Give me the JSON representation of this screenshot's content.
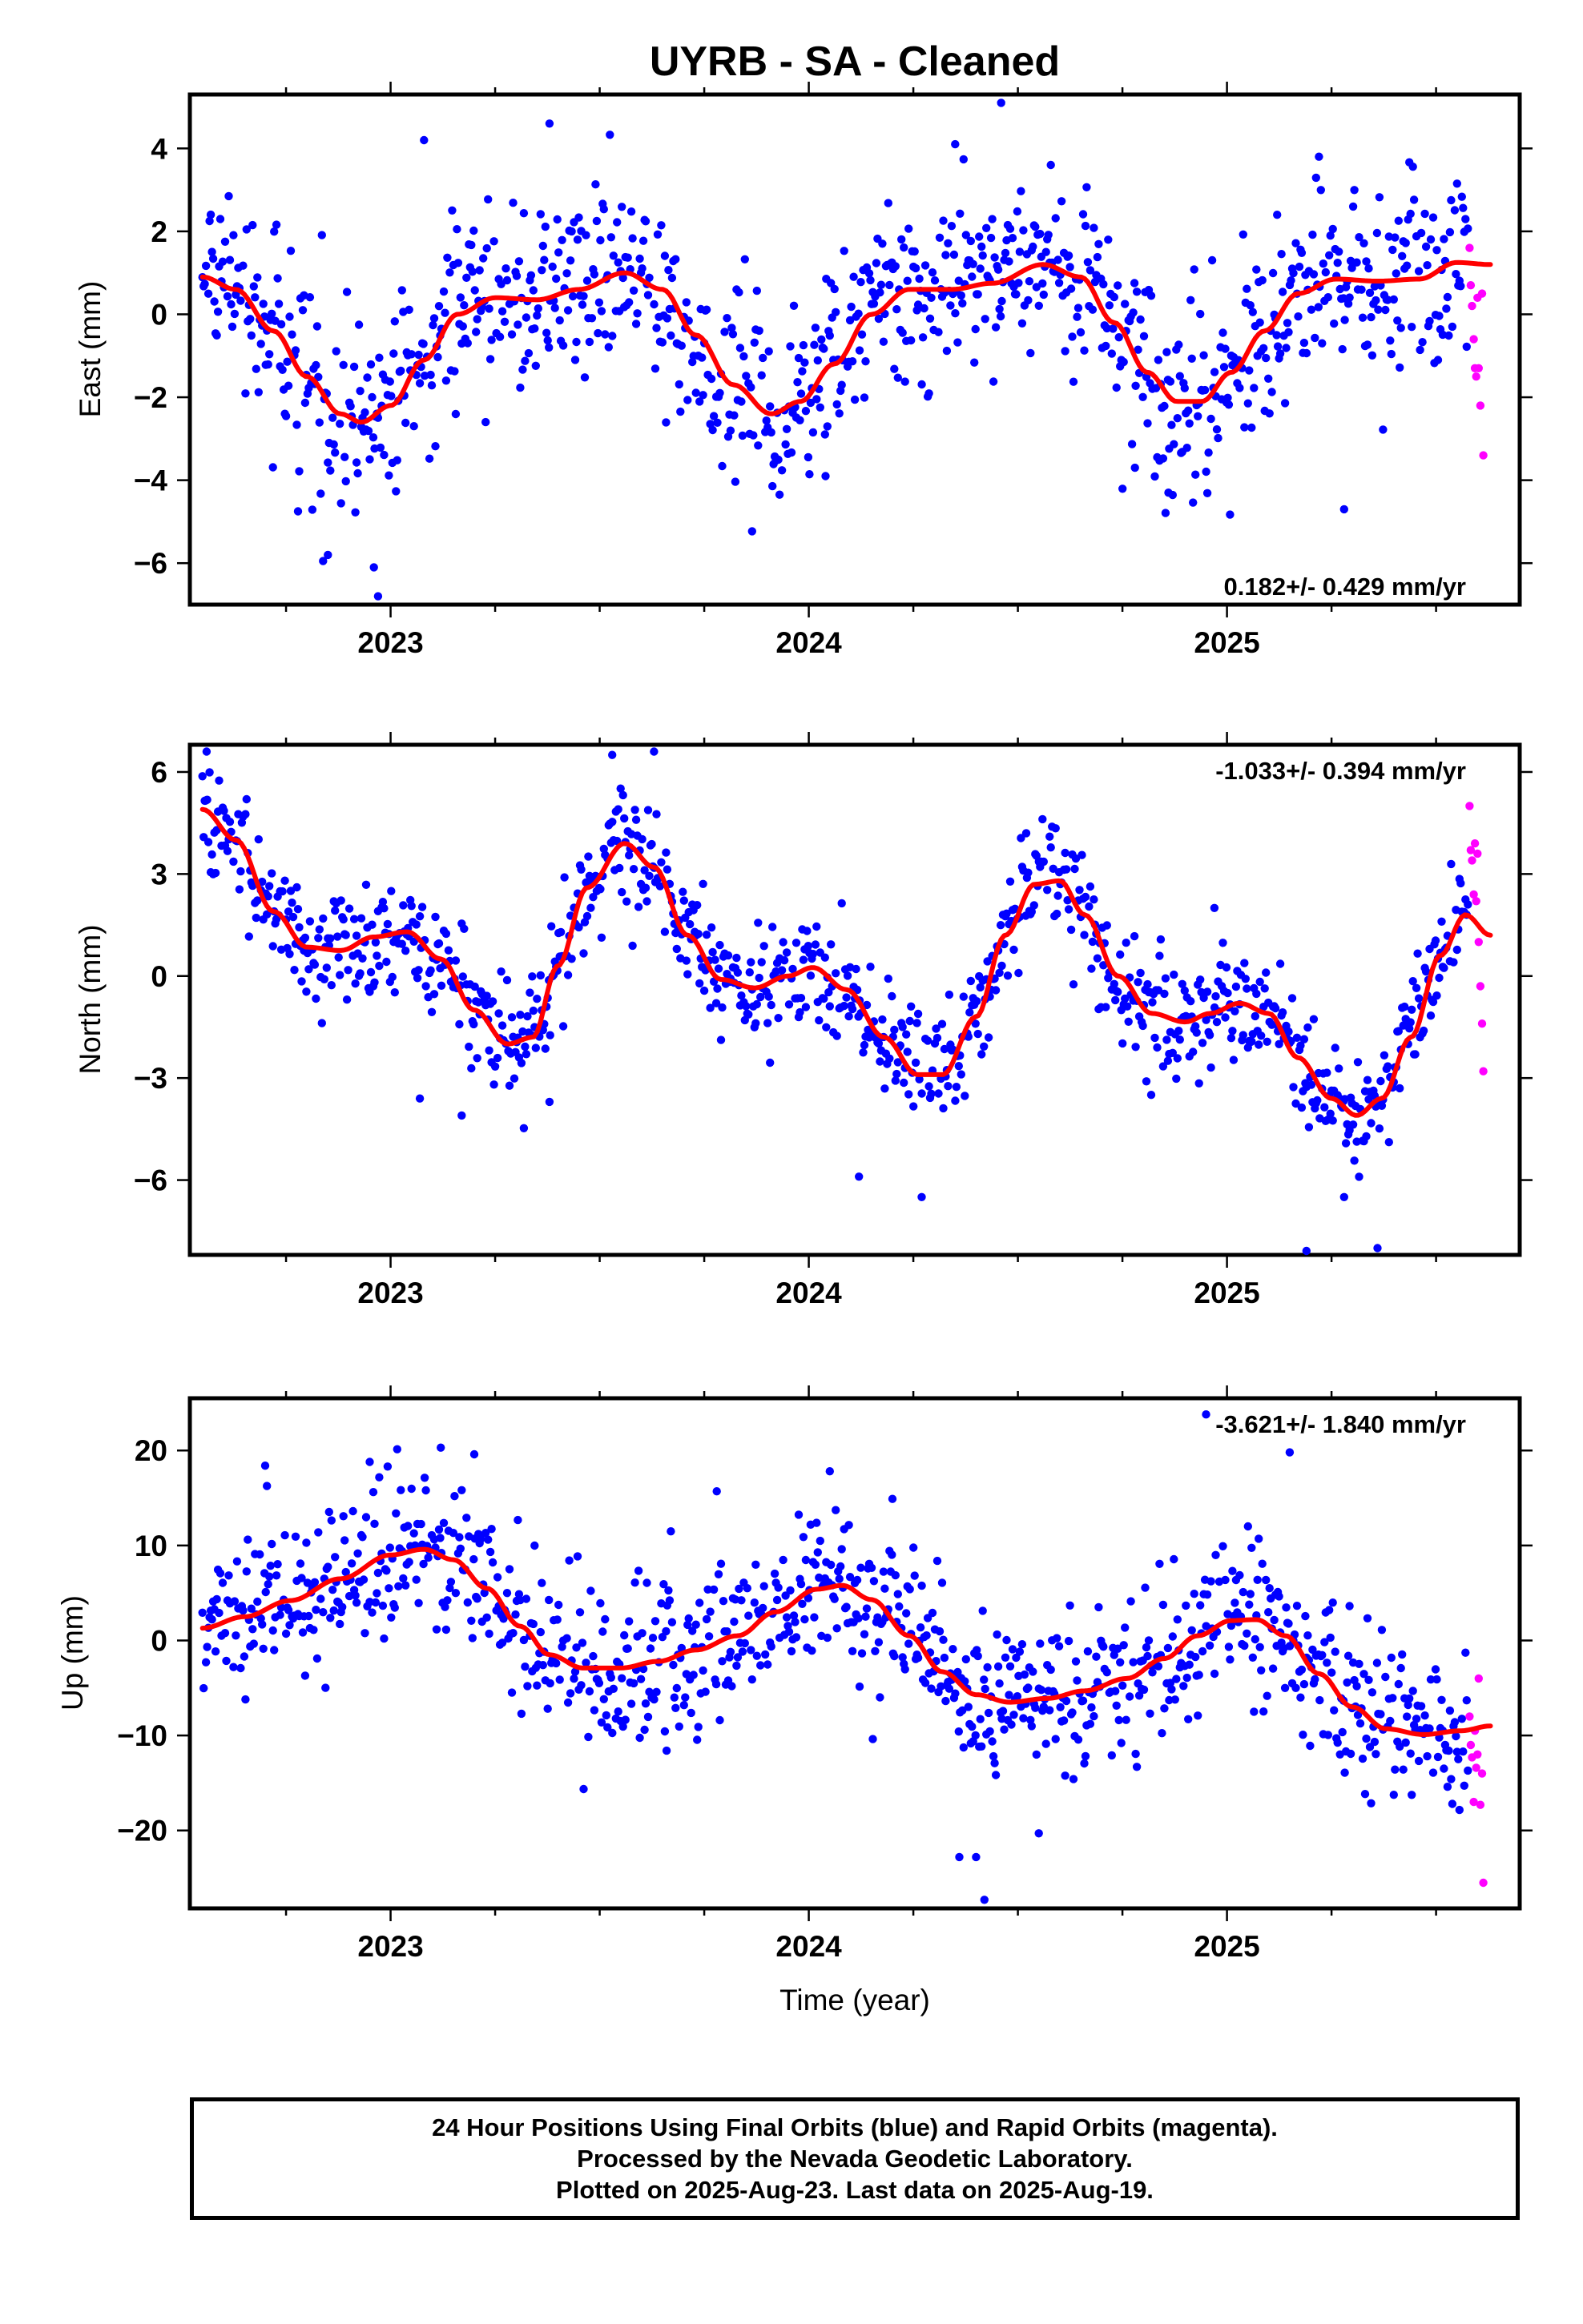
{
  "title": "UYRB  - SA - Cleaned",
  "footer": {
    "line1": "24 Hour Positions Using Final Orbits (blue) and Rapid Orbits (magenta).",
    "line2": "Processed by the Nevada Geodetic Laboratory.",
    "line3": "Plotted on 2025-Aug-23. Last data on 2025-Aug-19."
  },
  "colors": {
    "final": "#0000ff",
    "rapid": "#ff00ff",
    "fit": "#ff0000",
    "axes": "#000000"
  },
  "chart_data": [
    {
      "type": "scatter",
      "component": "east",
      "ylabel": "East (mm)",
      "xlabel": "",
      "xlim": [
        2022.52,
        2025.7
      ],
      "ylim": [
        -7.0,
        5.3
      ],
      "xticks": [
        2023,
        2024,
        2025
      ],
      "yticks": [
        -6,
        -4,
        -2,
        0,
        2,
        4
      ],
      "velocity_label": "0.182+/- 0.429 mm/yr",
      "velocity_position": "bottom-right",
      "grid": false,
      "trend": [
        [
          2022.55,
          0.9
        ],
        [
          2022.63,
          0.6
        ],
        [
          2022.72,
          -0.4
        ],
        [
          2022.8,
          -1.5
        ],
        [
          2022.88,
          -2.4
        ],
        [
          2022.93,
          -2.6
        ],
        [
          2023.0,
          -2.2
        ],
        [
          2023.08,
          -1.1
        ],
        [
          2023.16,
          0.0
        ],
        [
          2023.25,
          0.4
        ],
        [
          2023.35,
          0.35
        ],
        [
          2023.45,
          0.6
        ],
        [
          2023.56,
          1.0
        ],
        [
          2023.65,
          0.6
        ],
        [
          2023.73,
          -0.5
        ],
        [
          2023.82,
          -1.7
        ],
        [
          2023.91,
          -2.4
        ],
        [
          2023.98,
          -2.1
        ],
        [
          2024.06,
          -1.2
        ],
        [
          2024.15,
          0.0
        ],
        [
          2024.24,
          0.6
        ],
        [
          2024.34,
          0.6
        ],
        [
          2024.44,
          0.75
        ],
        [
          2024.56,
          1.2
        ],
        [
          2024.65,
          0.9
        ],
        [
          2024.73,
          -0.2
        ],
        [
          2024.81,
          -1.4
        ],
        [
          2024.88,
          -2.1
        ],
        [
          2024.94,
          -2.1
        ],
        [
          2025.01,
          -1.4
        ],
        [
          2025.09,
          -0.4
        ],
        [
          2025.17,
          0.5
        ],
        [
          2025.26,
          0.85
        ],
        [
          2025.36,
          0.8
        ],
        [
          2025.46,
          0.85
        ],
        [
          2025.55,
          1.25
        ],
        [
          2025.63,
          1.2
        ]
      ],
      "rapid": [
        [
          2025.58,
          1.6
        ],
        [
          2025.583,
          0.7
        ],
        [
          2025.586,
          0.2
        ],
        [
          2025.59,
          -0.6
        ],
        [
          2025.593,
          -1.3
        ],
        [
          2025.596,
          -1.5
        ],
        [
          2025.599,
          0.4
        ],
        [
          2025.602,
          -1.3
        ],
        [
          2025.606,
          -2.2
        ],
        [
          2025.61,
          0.5
        ],
        [
          2025.613,
          -3.4
        ]
      ],
      "noise_sd": 1.15,
      "outliers": [
        [
          2023.08,
          4.2
        ],
        [
          2023.38,
          4.6
        ],
        [
          2024.04,
          -3.9
        ],
        [
          2024.35,
          4.1
        ],
        [
          2024.46,
          5.1
        ],
        [
          2022.97,
          -6.8
        ],
        [
          2022.96,
          -6.1
        ],
        [
          2022.85,
          -5.8
        ],
        [
          2024.78,
          -3.7
        ],
        [
          2024.86,
          -4.3
        ],
        [
          2025.12,
          2.4
        ],
        [
          2025.22,
          3.8
        ],
        [
          2025.28,
          -4.7
        ]
      ]
    },
    {
      "type": "scatter",
      "component": "north",
      "ylabel": "North (mm)",
      "xlabel": "",
      "xlim": [
        2022.52,
        2025.7
      ],
      "ylim": [
        -8.2,
        6.8
      ],
      "xticks": [
        2023,
        2024,
        2025
      ],
      "yticks": [
        -6,
        -3,
        0,
        3,
        6
      ],
      "velocity_label": "-1.033+/- 0.394 mm/yr",
      "velocity_position": "top-right",
      "grid": false,
      "trend": [
        [
          2022.55,
          4.9
        ],
        [
          2022.63,
          4.0
        ],
        [
          2022.72,
          1.9
        ],
        [
          2022.8,
          0.85
        ],
        [
          2022.88,
          0.75
        ],
        [
          2022.96,
          1.15
        ],
        [
          2023.04,
          1.3
        ],
        [
          2023.12,
          0.5
        ],
        [
          2023.2,
          -1.0
        ],
        [
          2023.28,
          -2.0
        ],
        [
          2023.34,
          -1.8
        ],
        [
          2023.4,
          0.3
        ],
        [
          2023.47,
          2.6
        ],
        [
          2023.56,
          3.9
        ],
        [
          2023.63,
          3.2
        ],
        [
          2023.71,
          1.2
        ],
        [
          2023.79,
          -0.1
        ],
        [
          2023.87,
          -0.35
        ],
        [
          2023.95,
          0.0
        ],
        [
          2024.01,
          0.25
        ],
        [
          2024.09,
          -0.4
        ],
        [
          2024.18,
          -1.8
        ],
        [
          2024.26,
          -2.9
        ],
        [
          2024.32,
          -2.9
        ],
        [
          2024.4,
          -1.2
        ],
        [
          2024.47,
          1.2
        ],
        [
          2024.54,
          2.7
        ],
        [
          2024.6,
          2.8
        ],
        [
          2024.66,
          1.8
        ],
        [
          2024.74,
          0.0
        ],
        [
          2024.82,
          -1.1
        ],
        [
          2024.9,
          -1.35
        ],
        [
          2024.96,
          -1.1
        ],
        [
          2025.03,
          -0.8
        ],
        [
          2025.1,
          -1.1
        ],
        [
          2025.17,
          -2.4
        ],
        [
          2025.25,
          -3.6
        ],
        [
          2025.31,
          -4.1
        ],
        [
          2025.37,
          -3.6
        ],
        [
          2025.44,
          -1.8
        ],
        [
          2025.51,
          0.6
        ],
        [
          2025.57,
          1.8
        ],
        [
          2025.63,
          1.2
        ]
      ],
      "rapid": [
        [
          2025.58,
          5.0
        ],
        [
          2025.583,
          3.7
        ],
        [
          2025.586,
          3.4
        ],
        [
          2025.59,
          2.4
        ],
        [
          2025.593,
          3.9
        ],
        [
          2025.596,
          2.2
        ],
        [
          2025.599,
          3.6
        ],
        [
          2025.602,
          1.0
        ],
        [
          2025.606,
          -0.3
        ],
        [
          2025.61,
          -1.4
        ],
        [
          2025.613,
          -2.8
        ]
      ],
      "noise_sd": 0.85,
      "outliers": [
        [
          2022.56,
          6.6
        ],
        [
          2023.07,
          -3.6
        ],
        [
          2023.17,
          -4.1
        ],
        [
          2023.38,
          -3.7
        ],
        [
          2023.53,
          6.5
        ],
        [
          2023.63,
          6.6
        ],
        [
          2024.12,
          -5.9
        ],
        [
          2024.27,
          -6.5
        ],
        [
          2025.19,
          -8.1
        ],
        [
          2025.36,
          -8.0
        ],
        [
          2025.28,
          -6.5
        ],
        [
          2024.52,
          4.2
        ],
        [
          2024.97,
          2.0
        ]
      ]
    },
    {
      "type": "scatter",
      "component": "up",
      "ylabel": "Up (mm)",
      "xlabel": "Time (year)",
      "xlim": [
        2022.52,
        2025.7
      ],
      "ylim": [
        -28.2,
        25.5
      ],
      "xticks": [
        2023,
        2024,
        2025
      ],
      "yticks": [
        -20,
        -10,
        0,
        10,
        20
      ],
      "velocity_label": "-3.621+/- 1.840 mm/yr",
      "velocity_position": "top-right",
      "grid": false,
      "trend": [
        [
          2022.55,
          1.3
        ],
        [
          2022.65,
          2.5
        ],
        [
          2022.76,
          4.2
        ],
        [
          2022.88,
          6.5
        ],
        [
          2023.0,
          9.0
        ],
        [
          2023.08,
          9.6
        ],
        [
          2023.15,
          8.5
        ],
        [
          2023.23,
          5.5
        ],
        [
          2023.31,
          1.5
        ],
        [
          2023.38,
          -1.5
        ],
        [
          2023.46,
          -2.9
        ],
        [
          2023.55,
          -2.9
        ],
        [
          2023.64,
          -2.2
        ],
        [
          2023.73,
          -1.0
        ],
        [
          2023.83,
          0.5
        ],
        [
          2023.92,
          3.0
        ],
        [
          2024.02,
          5.4
        ],
        [
          2024.08,
          5.8
        ],
        [
          2024.15,
          4.3
        ],
        [
          2024.24,
          0.5
        ],
        [
          2024.32,
          -3.3
        ],
        [
          2024.4,
          -5.7
        ],
        [
          2024.48,
          -6.5
        ],
        [
          2024.57,
          -6.1
        ],
        [
          2024.66,
          -5.3
        ],
        [
          2024.76,
          -4.0
        ],
        [
          2024.85,
          -1.9
        ],
        [
          2024.93,
          0.5
        ],
        [
          2025.01,
          2.1
        ],
        [
          2025.07,
          2.2
        ],
        [
          2025.14,
          0.5
        ],
        [
          2025.22,
          -3.5
        ],
        [
          2025.3,
          -7.0
        ],
        [
          2025.38,
          -9.3
        ],
        [
          2025.47,
          -9.9
        ],
        [
          2025.56,
          -9.5
        ],
        [
          2025.63,
          -9.0
        ]
      ],
      "rapid": [
        [
          2025.58,
          -8.0
        ],
        [
          2025.583,
          -11.0
        ],
        [
          2025.586,
          -12.3
        ],
        [
          2025.59,
          -17.0
        ],
        [
          2025.593,
          -9.5
        ],
        [
          2025.596,
          -13.4
        ],
        [
          2025.599,
          -12.0
        ],
        [
          2025.602,
          -4.0
        ],
        [
          2025.606,
          -17.3
        ],
        [
          2025.61,
          -14.0
        ],
        [
          2025.613,
          -25.5
        ]
      ],
      "noise_sd": 4.2,
      "outliers": [
        [
          2022.7,
          18.4
        ],
        [
          2022.95,
          18.8
        ],
        [
          2023.12,
          20.3
        ],
        [
          2023.2,
          19.6
        ],
        [
          2024.36,
          -22.8
        ],
        [
          2024.4,
          -22.8
        ],
        [
          2024.42,
          -27.3
        ],
        [
          2024.95,
          23.8
        ],
        [
          2025.15,
          19.8
        ],
        [
          2024.55,
          -20.3
        ],
        [
          2023.66,
          -11.6
        ],
        [
          2023.78,
          15.7
        ],
        [
          2024.2,
          14.9
        ]
      ]
    }
  ]
}
